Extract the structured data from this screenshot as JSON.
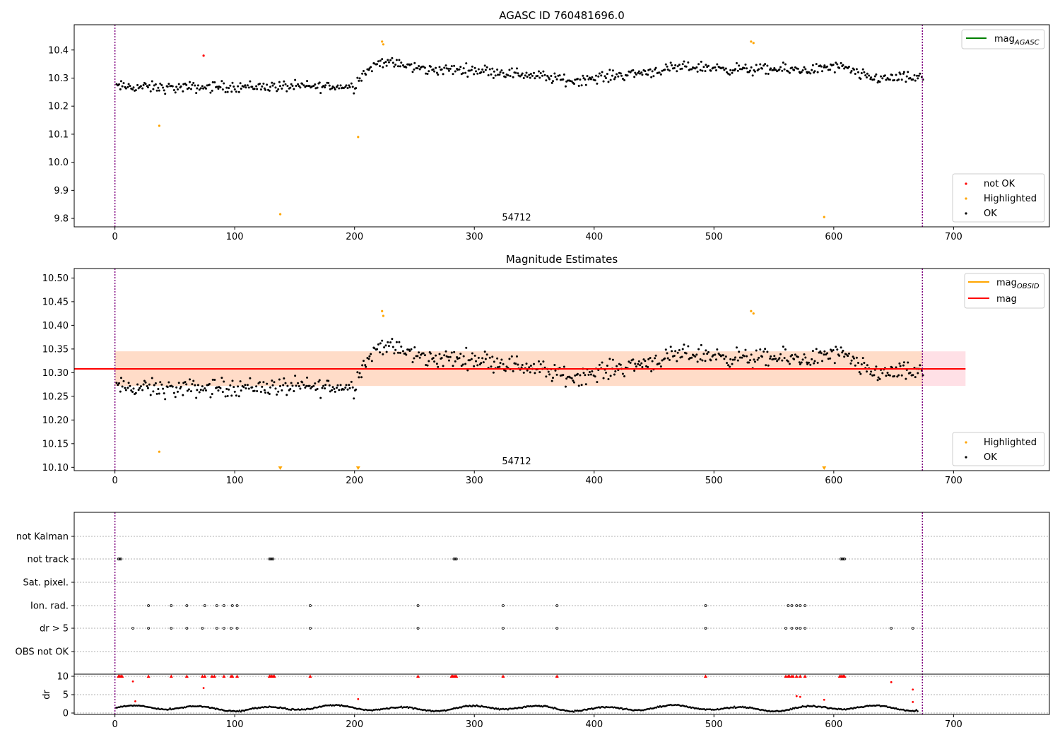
{
  "panel1": {
    "title": "AGASC ID 760481696.0",
    "annotation": "54712",
    "x_ticks": [
      "0",
      "100",
      "200",
      "300",
      "400",
      "500",
      "600",
      "700"
    ],
    "y_ticks": [
      "9.8",
      "9.9",
      "10.0",
      "10.1",
      "10.2",
      "10.3",
      "10.4"
    ],
    "legend_top": {
      "label": "mag",
      "sub": "AGASC"
    },
    "legend_bottom": [
      "not OK",
      "Highlighted",
      "OK"
    ]
  },
  "panel2": {
    "title": "Magnitude Estimates",
    "annotation": "54712",
    "x_ticks": [
      "0",
      "100",
      "200",
      "300",
      "400",
      "500",
      "600",
      "700"
    ],
    "y_ticks": [
      "10.10",
      "10.15",
      "10.20",
      "10.25",
      "10.30",
      "10.35",
      "10.40",
      "10.45",
      "10.50"
    ],
    "legend_top": [
      {
        "label": "mag",
        "sub": "OBSID"
      },
      {
        "label": "mag",
        "sub": ""
      }
    ],
    "legend_bottom": [
      "Highlighted",
      "OK"
    ]
  },
  "panel3": {
    "flag_labels": [
      "not Kalman",
      "not track",
      "Sat. pixel.",
      "Ion. rad.",
      "dr > 5",
      "OBS not OK"
    ],
    "ylabel": "dr",
    "dr_ticks": [
      "0",
      "5",
      "10"
    ],
    "x_ticks": [
      "0",
      "100",
      "200",
      "300",
      "400",
      "500",
      "600",
      "700"
    ]
  },
  "colors": {
    "ok": "#000000",
    "not_ok": "#ff0000",
    "highlighted": "#ffa500",
    "mag_agasc": "#008000",
    "mag_obsid": "#ffa500",
    "mag": "#ff0000",
    "obs_boundary": "#800080",
    "band_inner": "#ffdcc8",
    "band_outer": "#ffe0e6"
  },
  "chart_data": [
    {
      "type": "scatter",
      "title": "AGASC ID 760481696.0",
      "xlim": [
        -34,
        780
      ],
      "ylim": [
        9.77,
        10.49
      ],
      "obs_boundaries": [
        0,
        674
      ],
      "obsid_label": "54712",
      "highlighted_points": [
        [
          37,
          10.13
        ],
        [
          138,
          9.815
        ],
        [
          203,
          10.09
        ],
        [
          223,
          10.43
        ],
        [
          224,
          10.42
        ],
        [
          531,
          10.43
        ],
        [
          533,
          10.425
        ],
        [
          592,
          9.805
        ]
      ],
      "not_ok_points": [
        [
          74,
          10.38
        ]
      ],
      "ok_trend": [
        [
          0,
          10.27
        ],
        [
          50,
          10.265
        ],
        [
          100,
          10.27
        ],
        [
          150,
          10.27
        ],
        [
          200,
          10.27
        ],
        [
          205,
          10.31
        ],
        [
          222,
          10.36
        ],
        [
          260,
          10.33
        ],
        [
          300,
          10.33
        ],
        [
          350,
          10.31
        ],
        [
          380,
          10.29
        ],
        [
          420,
          10.31
        ],
        [
          480,
          10.34
        ],
        [
          530,
          10.33
        ],
        [
          580,
          10.33
        ],
        [
          605,
          10.34
        ],
        [
          630,
          10.3
        ],
        [
          674,
          10.3
        ]
      ],
      "ok_scatter": 0.03,
      "ok_count": 660
    },
    {
      "type": "scatter",
      "title": "Magnitude Estimates",
      "xlim": [
        -34,
        780
      ],
      "ylim": [
        10.093,
        10.52
      ],
      "mag": 10.308,
      "mag_band": [
        10.272,
        10.345
      ],
      "band_xrange": [
        0,
        710
      ],
      "highlighted_points": [
        [
          37,
          10.133
        ],
        [
          223,
          10.43
        ],
        [
          224,
          10.42
        ],
        [
          531,
          10.43
        ],
        [
          533,
          10.425
        ]
      ],
      "highlighted_clipped_x": [
        138,
        203,
        592
      ],
      "ok_trend": [
        [
          0,
          10.27
        ],
        [
          50,
          10.265
        ],
        [
          100,
          10.27
        ],
        [
          150,
          10.27
        ],
        [
          200,
          10.27
        ],
        [
          205,
          10.31
        ],
        [
          222,
          10.36
        ],
        [
          260,
          10.33
        ],
        [
          300,
          10.33
        ],
        [
          350,
          10.31
        ],
        [
          380,
          10.29
        ],
        [
          420,
          10.31
        ],
        [
          480,
          10.34
        ],
        [
          530,
          10.33
        ],
        [
          580,
          10.33
        ],
        [
          605,
          10.34
        ],
        [
          630,
          10.3
        ],
        [
          674,
          10.3
        ]
      ]
    },
    {
      "type": "scatter",
      "xlim": [
        -34,
        780
      ],
      "flags": {
        "not track": [
          3,
          4,
          5,
          129,
          130,
          131,
          132,
          283,
          284,
          285,
          606,
          607,
          608,
          609
        ],
        "Ion. rad.": [
          28,
          47,
          60,
          75,
          85,
          91,
          98,
          102,
          163,
          253,
          324,
          369,
          493,
          562,
          565,
          569,
          572,
          576
        ],
        "dr > 5": [
          15,
          28,
          47,
          60,
          73,
          85,
          91,
          97,
          102,
          163,
          253,
          324,
          369,
          493,
          560,
          565,
          569,
          572,
          576,
          648,
          666
        ]
      },
      "dr_ylim": [
        0,
        10
      ],
      "dr_capped_x": [
        3,
        4,
        5,
        6,
        28,
        47,
        60,
        73,
        75,
        81,
        83,
        91,
        97,
        98,
        102,
        129,
        130,
        131,
        132,
        133,
        163,
        253,
        281,
        282,
        283,
        284,
        285,
        324,
        369,
        493,
        560,
        562,
        563,
        565,
        566,
        569,
        572,
        576,
        605,
        606,
        607,
        608,
        609
      ],
      "dr_red_points": [
        [
          15,
          8.6
        ],
        [
          17,
          3.2
        ],
        [
          74,
          6.8
        ],
        [
          203,
          3.8
        ],
        [
          569,
          4.6
        ],
        [
          572,
          4.4
        ],
        [
          592,
          3.6
        ],
        [
          648,
          8.4
        ],
        [
          666,
          6.4
        ],
        [
          666,
          3
        ]
      ]
    }
  ]
}
